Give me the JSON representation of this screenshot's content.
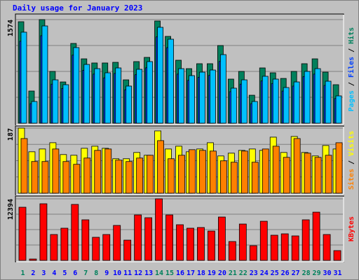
{
  "chart_data": [
    {
      "type": "bar",
      "title": "Daily usage for January 2023",
      "legend_separator": " / ",
      "ylim": [
        0,
        1574
      ],
      "yticks": [
        1574
      ],
      "grid": true,
      "series": [
        {
          "name": "Hits",
          "color": "#00805c",
          "values": [
            1542,
            489,
            1574,
            787,
            627,
            1212,
            978,
            915,
            915,
            925,
            659,
            936,
            1000,
            1553,
            1319,
            957,
            829,
            904,
            904,
            1180,
            670,
            787,
            425,
            840,
            766,
            680,
            787,
            904,
            978,
            776,
            585
          ]
        },
        {
          "name": "Files",
          "color": "#0040ff",
          "values": [
            1245,
            297,
            1330,
            593,
            527,
            1034,
            804,
            746,
            689,
            756,
            508,
            737,
            842,
            1311,
            1148,
            746,
            651,
            698,
            727,
            938,
            479,
            593,
            297,
            642,
            603,
            488,
            564,
            708,
            746,
            574,
            374
          ]
        },
        {
          "name": "Pages",
          "color": "#00c0ff",
          "values": [
            1383,
            330,
            1478,
            659,
            585,
            1149,
            893,
            829,
            766,
            840,
            564,
            819,
            936,
            1457,
            1276,
            829,
            723,
            776,
            808,
            1042,
            532,
            659,
            330,
            713,
            670,
            542,
            627,
            787,
            829,
            638,
            415
          ]
        }
      ]
    },
    {
      "type": "bar",
      "legend_separator": " / ",
      "ylim": [
        0,
        187
      ],
      "yticks": [
        187
      ],
      "grid": true,
      "series": [
        {
          "name": "Visits",
          "color": "#ffff00",
          "values": [
            187,
            119,
            127,
            145,
            111,
            109,
            129,
            135,
            129,
            99,
            99,
            117,
            109,
            179,
            127,
            135,
            119,
            127,
            145,
            107,
            115,
            123,
            127,
            123,
            161,
            117,
            163,
            117,
            107,
            137,
            127
          ]
        },
        {
          "name": "Sites",
          "color": "#ff8000",
          "values": [
            157,
            91,
            91,
            127,
            91,
            83,
            101,
            123,
            127,
            95,
            91,
            101,
            109,
            151,
            99,
            109,
            125,
            123,
            121,
            93,
            89,
            121,
            89,
            127,
            135,
            103,
            157,
            115,
            103,
            109,
            145
          ]
        }
      ]
    },
    {
      "type": "bar",
      "ylim": [
        0,
        12394
      ],
      "yticks": [
        12394
      ],
      "grid": true,
      "series": [
        {
          "name": "KBytes",
          "color": "#ff0000",
          "values": [
            10700,
            280,
            11400,
            5210,
            6480,
            11265,
            8170,
            4650,
            5210,
            7040,
            4080,
            9150,
            8590,
            12394,
            9150,
            7180,
            6480,
            6620,
            5910,
            8730,
            3800,
            7320,
            2960,
            7880,
            5070,
            5350,
            4930,
            8170,
            9710,
            5210,
            1970
          ]
        }
      ],
      "categories": [
        "1",
        "2",
        "3",
        "4",
        "5",
        "6",
        "7",
        "8",
        "9",
        "10",
        "11",
        "12",
        "13",
        "14",
        "15",
        "16",
        "17",
        "18",
        "19",
        "20",
        "21",
        "22",
        "23",
        "24",
        "25",
        "26",
        "27",
        "28",
        "29",
        "30",
        "31"
      ],
      "category_color": "#0000ff",
      "highlight_categories": [
        0,
        6,
        7,
        13,
        14,
        20,
        21,
        27,
        28
      ],
      "highlight_color": "#00805c"
    }
  ]
}
